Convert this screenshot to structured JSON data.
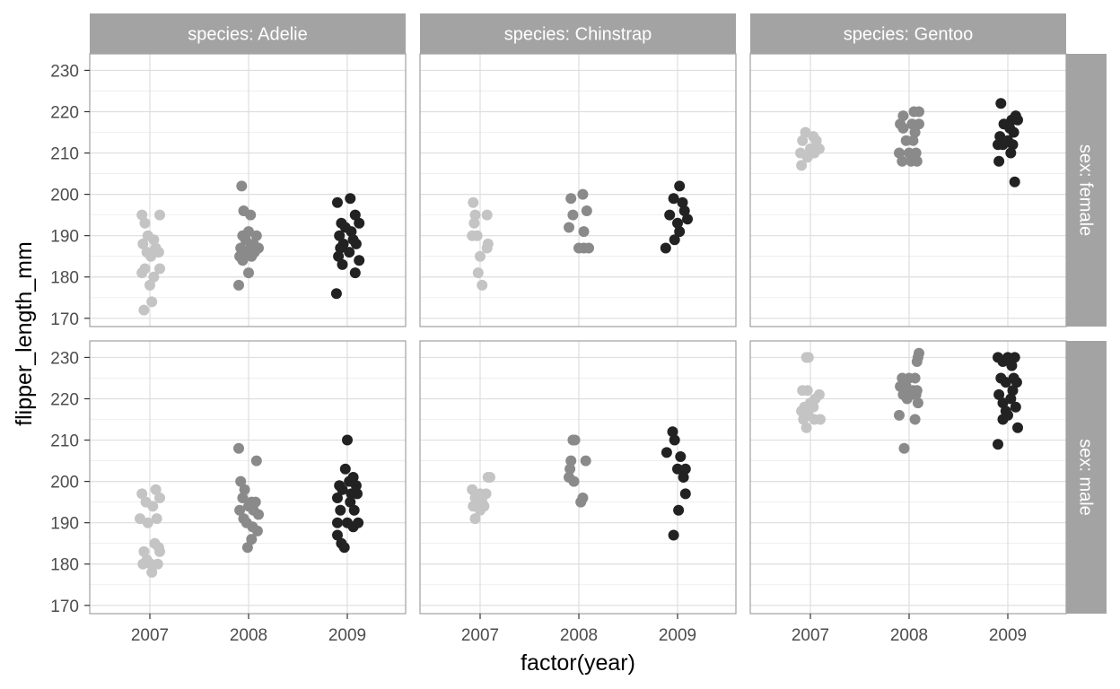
{
  "chart_data": {
    "type": "scatter",
    "subtype": "faceted jitter plot",
    "xlabel": "factor(year)",
    "ylabel": "flipper_length_mm",
    "ylim": [
      168,
      234
    ],
    "y_ticks": [
      170,
      180,
      190,
      200,
      210,
      220,
      230
    ],
    "x_categories": [
      "2007",
      "2008",
      "2009"
    ],
    "col_strip_prefix": "species: ",
    "row_strip_prefix": "sex: ",
    "columns": [
      "Adelie",
      "Chinstrap",
      "Gentoo"
    ],
    "rows": [
      "female",
      "male"
    ],
    "col_labels": [
      "species: Adelie",
      "species: Chinstrap",
      "species: Gentoo"
    ],
    "row_labels": [
      "sex: female",
      "sex: male"
    ],
    "colors": {
      "2007": "#c4c4c4",
      "2008": "#8a8a8a",
      "2009": "#222222",
      "strip": "#a3a3a3",
      "grid": "#dedede",
      "panel_border": "#a0a0a0"
    },
    "legend": "none",
    "panels": [
      {
        "row": "female",
        "col": "Adelie",
        "points": {
          "2007": [
            [
              -0.08,
              195
            ],
            [
              0.1,
              195
            ],
            [
              -0.05,
              193
            ],
            [
              -0.02,
              190
            ],
            [
              0.04,
              189
            ],
            [
              -0.07,
              188
            ],
            [
              0.06,
              187
            ],
            [
              -0.03,
              186
            ],
            [
              0.09,
              186
            ],
            [
              0.01,
              185
            ],
            [
              -0.05,
              182
            ],
            [
              0.1,
              182
            ],
            [
              -0.08,
              181
            ],
            [
              0.04,
              180
            ],
            [
              0.0,
              178
            ],
            [
              0.02,
              174
            ],
            [
              -0.06,
              172
            ]
          ],
          "2008": [
            [
              -0.07,
              202
            ],
            [
              -0.05,
              196
            ],
            [
              0.02,
              195
            ],
            [
              -0.06,
              190
            ],
            [
              0.0,
              191
            ],
            [
              0.08,
              190
            ],
            [
              -0.03,
              189
            ],
            [
              0.05,
              188
            ],
            [
              -0.08,
              187
            ],
            [
              0.02,
              187
            ],
            [
              0.1,
              187
            ],
            [
              -0.04,
              186
            ],
            [
              0.06,
              186
            ],
            [
              -0.09,
              185
            ],
            [
              0.03,
              185
            ],
            [
              -0.06,
              184
            ],
            [
              0.0,
              181
            ],
            [
              -0.1,
              178
            ]
          ],
          "2009": [
            [
              -0.1,
              198
            ],
            [
              0.03,
              199
            ],
            [
              -0.06,
              193
            ],
            [
              0.08,
              195
            ],
            [
              0.12,
              193
            ],
            [
              -0.02,
              192
            ],
            [
              0.04,
              191
            ],
            [
              -0.08,
              190
            ],
            [
              0.06,
              189
            ],
            [
              -0.04,
              188
            ],
            [
              0.09,
              188
            ],
            [
              -0.07,
              187
            ],
            [
              0.02,
              186
            ],
            [
              -0.09,
              185
            ],
            [
              -0.05,
              183
            ],
            [
              0.08,
              181
            ],
            [
              0.12,
              184
            ],
            [
              -0.11,
              176
            ]
          ]
        }
      },
      {
        "row": "female",
        "col": "Chinstrap",
        "points": {
          "2007": [
            [
              -0.07,
              198
            ],
            [
              0.07,
              195
            ],
            [
              -0.05,
              195
            ],
            [
              -0.06,
              193
            ],
            [
              -0.08,
              190
            ],
            [
              -0.03,
              190
            ],
            [
              0.08,
              188
            ],
            [
              0.07,
              187
            ],
            [
              0.0,
              185
            ],
            [
              -0.02,
              181
            ],
            [
              0.02,
              178
            ]
          ],
          "2008": [
            [
              -0.08,
              199
            ],
            [
              0.04,
              200
            ],
            [
              -0.06,
              195
            ],
            [
              0.08,
              196
            ],
            [
              -0.1,
              192
            ],
            [
              0.05,
              191
            ],
            [
              0.0,
              187
            ],
            [
              0.05,
              187
            ],
            [
              0.1,
              187
            ]
          ],
          "2009": [
            [
              0.02,
              202
            ],
            [
              -0.04,
              199
            ],
            [
              0.05,
              198
            ],
            [
              -0.08,
              195
            ],
            [
              0.07,
              196
            ],
            [
              0.1,
              194
            ],
            [
              0.0,
              193
            ],
            [
              0.02,
              191
            ],
            [
              -0.03,
              189
            ],
            [
              -0.12,
              187
            ]
          ]
        }
      },
      {
        "row": "female",
        "col": "Gentoo",
        "points": {
          "2007": [
            [
              -0.05,
              215
            ],
            [
              0.03,
              214
            ],
            [
              -0.08,
              213
            ],
            [
              0.06,
              213
            ],
            [
              0.0,
              211
            ],
            [
              0.09,
              211
            ],
            [
              -0.1,
              210
            ],
            [
              0.04,
              210
            ],
            [
              -0.03,
              209
            ],
            [
              -0.09,
              207
            ]
          ],
          "2008": [
            [
              -0.06,
              219
            ],
            [
              0.05,
              220
            ],
            [
              0.1,
              220
            ],
            [
              -0.09,
              217
            ],
            [
              0.03,
              217
            ],
            [
              0.1,
              217
            ],
            [
              -0.06,
              216
            ],
            [
              0.06,
              215
            ],
            [
              -0.03,
              213
            ],
            [
              0.04,
              213
            ],
            [
              -0.1,
              210
            ],
            [
              0.0,
              210
            ],
            [
              0.07,
              210
            ],
            [
              -0.07,
              208
            ],
            [
              0.02,
              208
            ],
            [
              0.08,
              208
            ]
          ],
          "2009": [
            [
              -0.07,
              222
            ],
            [
              0.08,
              219
            ],
            [
              0.04,
              218
            ],
            [
              0.1,
              218
            ],
            [
              -0.04,
              217
            ],
            [
              0.02,
              216
            ],
            [
              0.06,
              215
            ],
            [
              -0.08,
              214
            ],
            [
              0.0,
              213
            ],
            [
              -0.1,
              212
            ],
            [
              -0.05,
              212
            ],
            [
              0.05,
              212
            ],
            [
              0.03,
              210
            ],
            [
              -0.09,
              208
            ],
            [
              0.07,
              203
            ]
          ]
        }
      },
      {
        "row": "male",
        "col": "Adelie",
        "points": {
          "2007": [
            [
              0.06,
              198
            ],
            [
              -0.08,
              197
            ],
            [
              0.1,
              196
            ],
            [
              -0.04,
              195
            ],
            [
              0.03,
              194
            ],
            [
              -0.1,
              191
            ],
            [
              0.07,
              191
            ],
            [
              -0.02,
              190
            ],
            [
              0.05,
              185
            ],
            [
              0.09,
              184
            ],
            [
              -0.06,
              183
            ],
            [
              0.1,
              183
            ],
            [
              -0.03,
              181
            ],
            [
              0.01,
              180
            ],
            [
              0.08,
              180
            ],
            [
              -0.07,
              180
            ],
            [
              0.02,
              178
            ]
          ],
          "2008": [
            [
              -0.1,
              208
            ],
            [
              0.08,
              205
            ],
            [
              -0.08,
              200
            ],
            [
              -0.04,
              198
            ],
            [
              0.03,
              195
            ],
            [
              0.07,
              195
            ],
            [
              -0.06,
              196
            ],
            [
              0.0,
              194
            ],
            [
              0.1,
              192
            ],
            [
              -0.09,
              193
            ],
            [
              0.05,
              193
            ],
            [
              -0.05,
              191
            ],
            [
              -0.02,
              190
            ],
            [
              0.04,
              189
            ],
            [
              0.09,
              188
            ],
            [
              0.03,
              186
            ],
            [
              -0.01,
              184
            ]
          ],
          "2009": [
            [
              0.0,
              210
            ],
            [
              -0.02,
              203
            ],
            [
              0.06,
              201
            ],
            [
              -0.08,
              199
            ],
            [
              0.02,
              200
            ],
            [
              0.09,
              199
            ],
            [
              -0.05,
              198
            ],
            [
              0.04,
              197
            ],
            [
              0.1,
              197
            ],
            [
              -0.1,
              196
            ],
            [
              0.03,
              195
            ],
            [
              -0.07,
              193
            ],
            [
              0.07,
              193
            ],
            [
              -0.1,
              190
            ],
            [
              0.0,
              190
            ],
            [
              0.11,
              190
            ],
            [
              -0.1,
              187
            ],
            [
              -0.06,
              185
            ],
            [
              -0.03,
              184
            ],
            [
              0.06,
              189
            ]
          ]
        }
      },
      {
        "row": "male",
        "col": "Chinstrap",
        "points": {
          "2007": [
            [
              0.08,
              201
            ],
            [
              0.1,
              201
            ],
            [
              -0.08,
              198
            ],
            [
              0.0,
              197
            ],
            [
              0.06,
              197
            ],
            [
              -0.05,
              196
            ],
            [
              0.02,
              195
            ],
            [
              -0.07,
              194
            ],
            [
              0.04,
              194
            ],
            [
              0.0,
              193
            ],
            [
              -0.05,
              191
            ]
          ],
          "2008": [
            [
              -0.06,
              210
            ],
            [
              -0.04,
              210
            ],
            [
              0.07,
              205
            ],
            [
              -0.08,
              205
            ],
            [
              -0.09,
              203
            ],
            [
              -0.1,
              201
            ],
            [
              -0.05,
              200
            ],
            [
              0.04,
              196
            ],
            [
              0.02,
              195
            ]
          ],
          "2009": [
            [
              -0.05,
              212
            ],
            [
              -0.03,
              210
            ],
            [
              -0.11,
              207
            ],
            [
              0.03,
              206
            ],
            [
              0.0,
              203
            ],
            [
              0.08,
              203
            ],
            [
              0.06,
              201
            ],
            [
              0.08,
              197
            ],
            [
              0.01,
              193
            ],
            [
              -0.04,
              187
            ]
          ]
        }
      },
      {
        "row": "male",
        "col": "Gentoo",
        "points": {
          "2007": [
            [
              -0.04,
              230
            ],
            [
              -0.02,
              230
            ],
            [
              -0.08,
              222
            ],
            [
              -0.03,
              222
            ],
            [
              0.09,
              221
            ],
            [
              0.05,
              220
            ],
            [
              0.0,
              219
            ],
            [
              -0.06,
              218
            ],
            [
              0.03,
              218
            ],
            [
              -0.09,
              217
            ],
            [
              -0.02,
              216
            ],
            [
              0.04,
              215
            ],
            [
              0.1,
              215
            ],
            [
              -0.07,
              215
            ],
            [
              -0.04,
              213
            ]
          ],
          "2008": [
            [
              0.1,
              231
            ],
            [
              0.08,
              229
            ],
            [
              0.09,
              230
            ],
            [
              -0.07,
              225
            ],
            [
              0.0,
              225
            ],
            [
              0.06,
              225
            ],
            [
              -0.09,
              223
            ],
            [
              -0.03,
              223
            ],
            [
              0.04,
              222
            ],
            [
              0.08,
              222
            ],
            [
              -0.06,
              221
            ],
            [
              0.02,
              221
            ],
            [
              0.07,
              221
            ],
            [
              -0.02,
              220
            ],
            [
              0.09,
              219
            ],
            [
              -0.1,
              216
            ],
            [
              0.06,
              215
            ],
            [
              -0.05,
              208
            ]
          ],
          "2009": [
            [
              -0.1,
              230
            ],
            [
              -0.05,
              229
            ],
            [
              0.0,
              230
            ],
            [
              0.07,
              230
            ],
            [
              0.04,
              228
            ],
            [
              -0.07,
              225
            ],
            [
              0.06,
              225
            ],
            [
              -0.02,
              224
            ],
            [
              0.09,
              224
            ],
            [
              -0.09,
              221
            ],
            [
              0.05,
              222
            ],
            [
              0.03,
              220
            ],
            [
              -0.05,
              219
            ],
            [
              0.08,
              218
            ],
            [
              -0.02,
              217
            ],
            [
              0.0,
              216
            ],
            [
              -0.05,
              215
            ],
            [
              0.1,
              213
            ],
            [
              -0.1,
              209
            ]
          ]
        }
      }
    ]
  }
}
